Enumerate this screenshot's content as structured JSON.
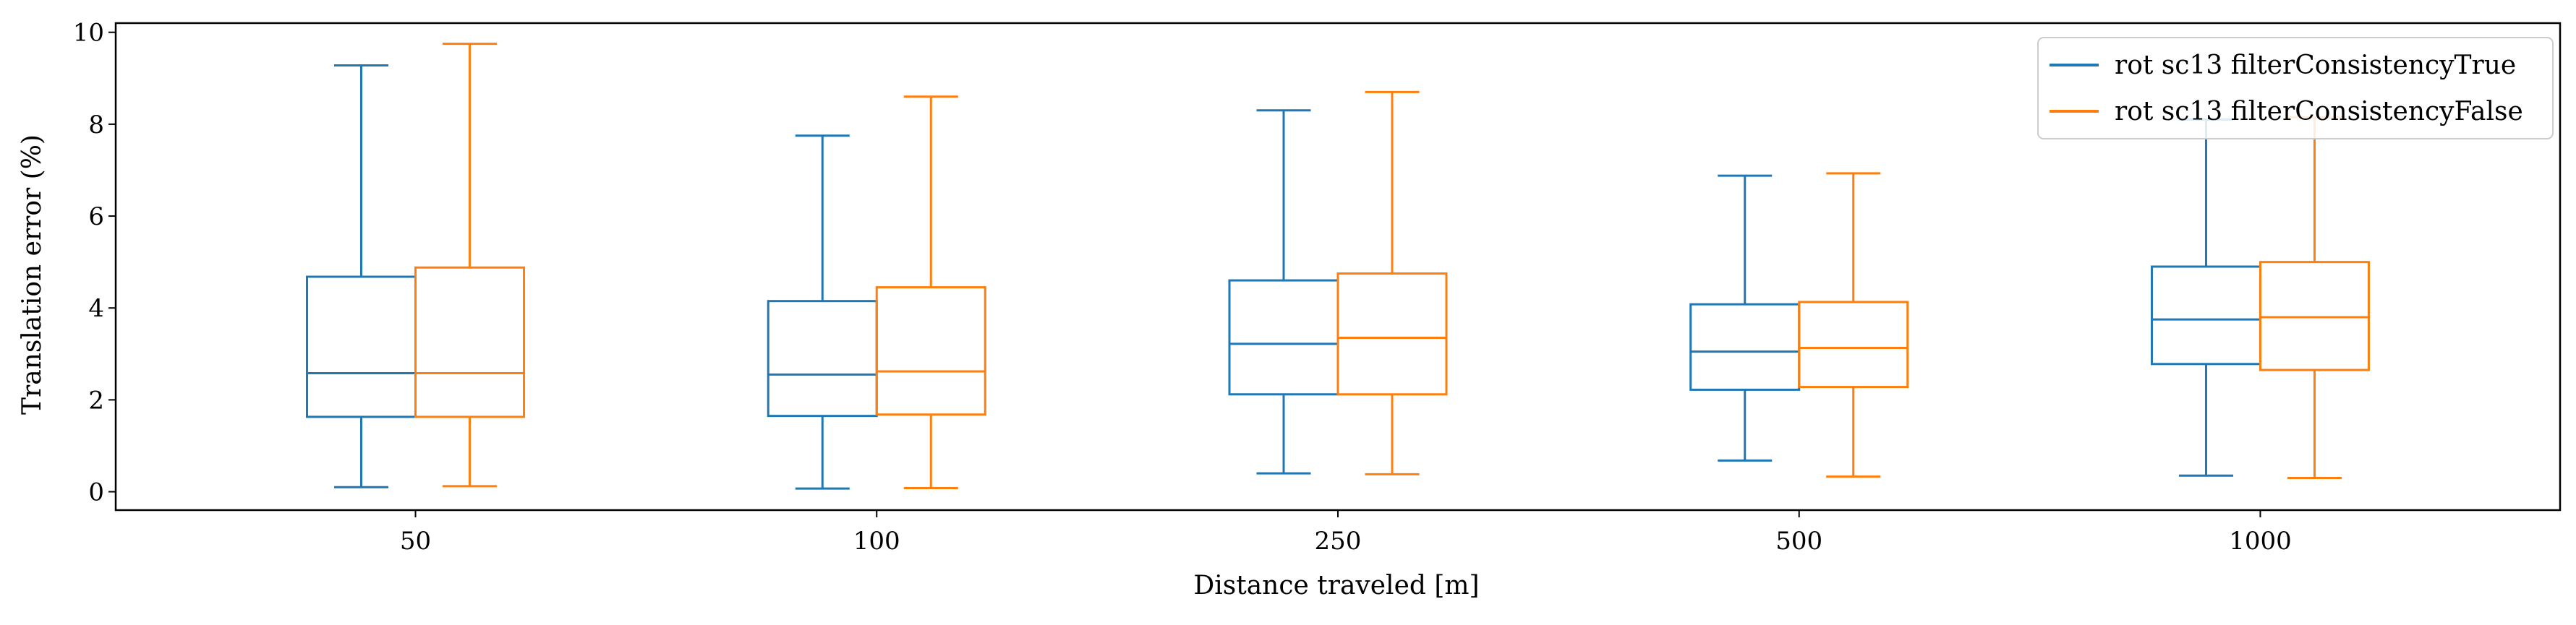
{
  "chart_data": {
    "type": "box",
    "xlabel": "Distance traveled [m]",
    "ylabel": "Translation error (%)",
    "categories": [
      "50",
      "100",
      "250",
      "500",
      "1000"
    ],
    "ylim": [
      -0.4,
      10.2
    ],
    "yticks": [
      0,
      2,
      4,
      6,
      8,
      10
    ],
    "grid": false,
    "legend_position": "top-right",
    "series": [
      {
        "name": "rot sc13 filterConsistencyTrue",
        "color": "#1f77b4",
        "boxes": [
          {
            "whislo": 0.1,
            "q1": 1.63,
            "med": 2.58,
            "q3": 4.68,
            "whishi": 9.28
          },
          {
            "whislo": 0.07,
            "q1": 1.65,
            "med": 2.55,
            "q3": 4.15,
            "whishi": 7.75
          },
          {
            "whislo": 0.4,
            "q1": 2.12,
            "med": 3.22,
            "q3": 4.6,
            "whishi": 8.3
          },
          {
            "whislo": 0.68,
            "q1": 2.22,
            "med": 3.05,
            "q3": 4.08,
            "whishi": 6.88
          },
          {
            "whislo": 0.35,
            "q1": 2.78,
            "med": 3.75,
            "q3": 4.9,
            "whishi": 8.1
          }
        ]
      },
      {
        "name": "rot sc13 filterConsistencyFalse",
        "color": "#ff7f0e",
        "boxes": [
          {
            "whislo": 0.12,
            "q1": 1.63,
            "med": 2.58,
            "q3": 4.88,
            "whishi": 9.75
          },
          {
            "whislo": 0.08,
            "q1": 1.68,
            "med": 2.62,
            "q3": 4.45,
            "whishi": 8.6
          },
          {
            "whislo": 0.38,
            "q1": 2.12,
            "med": 3.35,
            "q3": 4.75,
            "whishi": 8.7
          },
          {
            "whislo": 0.33,
            "q1": 2.28,
            "med": 3.13,
            "q3": 4.13,
            "whishi": 6.93
          },
          {
            "whislo": 0.3,
            "q1": 2.65,
            "med": 3.8,
            "q3": 5.0,
            "whishi": 8.15
          }
        ]
      }
    ]
  }
}
